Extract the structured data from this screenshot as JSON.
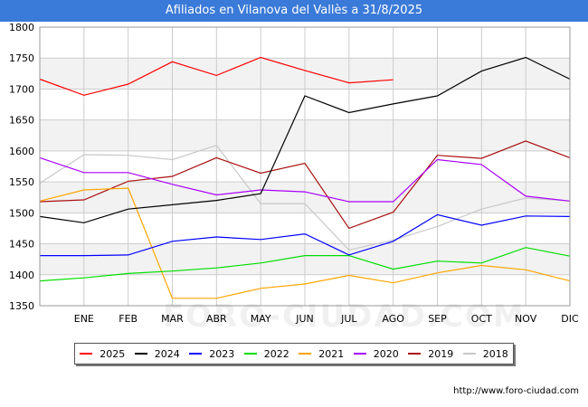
{
  "title": "Afiliados en Vilanova del Vallès a 31/8/2025",
  "footer_url": "http://www.foro-ciudad.com",
  "watermark": "FORO-CIUDAD.COM",
  "colors": {
    "title_bg": "#3a7ad8",
    "band": "#f2f2f2",
    "grid": "#cccccc"
  },
  "chart_data": {
    "type": "line",
    "title": "Afiliados en Vilanova del Vallès a 31/8/2025",
    "x_labels": [
      "",
      "ENE",
      "FEB",
      "MAR",
      "ABR",
      "MAY",
      "JUN",
      "JUL",
      "AGO",
      "SEP",
      "OCT",
      "NOV",
      "DIC"
    ],
    "y_ticks": [
      1350,
      1400,
      1450,
      1500,
      1550,
      1600,
      1650,
      1700,
      1750,
      1800
    ],
    "ylim": [
      1350,
      1800
    ],
    "grid": true,
    "legend_position": "bottom",
    "series": [
      {
        "name": "2025",
        "color": "#ff0000",
        "values": [
          1716,
          1690,
          1708,
          1744,
          1722,
          1751,
          1730,
          1710,
          1715,
          null,
          null,
          null,
          null
        ]
      },
      {
        "name": "2024",
        "color": "#000000",
        "values": [
          1494,
          1484,
          1506,
          1513,
          1520,
          1531,
          1689,
          1662,
          1676,
          1689,
          1729,
          1751,
          1716
        ]
      },
      {
        "name": "2023",
        "color": "#0000ff",
        "values": [
          1431,
          1431,
          1432,
          1454,
          1461,
          1457,
          1466,
          1432,
          1454,
          1497,
          1480,
          1495,
          1494
        ]
      },
      {
        "name": "2022",
        "color": "#00dd00",
        "values": [
          1390,
          1395,
          1402,
          1406,
          1411,
          1419,
          1431,
          1431,
          1409,
          1422,
          1419,
          1444,
          1430
        ]
      },
      {
        "name": "2021",
        "color": "#ffa500",
        "values": [
          1519,
          1537,
          1540,
          1362,
          1362,
          1378,
          1385,
          1399,
          1387,
          1403,
          1415,
          1408,
          1390
        ]
      },
      {
        "name": "2020",
        "color": "#aa00ff",
        "values": [
          1589,
          1565,
          1565,
          1546,
          1529,
          1537,
          1534,
          1518,
          1518,
          1586,
          1578,
          1527,
          1519
        ]
      },
      {
        "name": "2019",
        "color": "#aa1111",
        "values": [
          1518,
          1521,
          1551,
          1559,
          1589,
          1564,
          1580,
          1475,
          1501,
          1593,
          1588,
          1616,
          1589
        ]
      },
      {
        "name": "2018",
        "color": "#c8c8c8",
        "values": [
          1548,
          1594,
          1593,
          1586,
          1609,
          1515,
          1515,
          1440,
          1456,
          1478,
          1506,
          1524,
          1519
        ]
      }
    ]
  }
}
